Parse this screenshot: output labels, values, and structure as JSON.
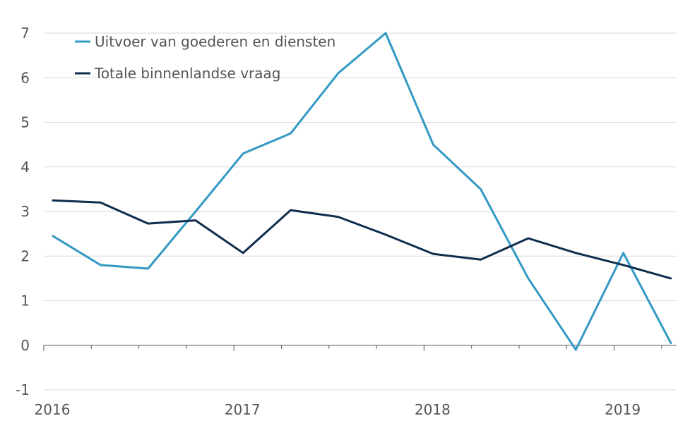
{
  "chart_data": {
    "type": "line",
    "title": "",
    "xlabel": "",
    "ylabel": "",
    "ylim": [
      -1,
      7
    ],
    "y_ticks": [
      -1,
      0,
      1,
      2,
      3,
      4,
      5,
      6,
      7
    ],
    "x_year_labels": [
      "2016",
      "2017",
      "2018",
      "2019"
    ],
    "quarters_per_year": 4,
    "grid": true,
    "legend_position": "top-left",
    "series": [
      {
        "name": "Uitvoer van goederen en diensten",
        "color": "#3399c4",
        "values": [
          2.45,
          1.8,
          1.72,
          3.0,
          4.3,
          4.75,
          6.1,
          7.0,
          4.5,
          3.5,
          1.5,
          -0.1,
          2.07,
          0.05
        ]
      },
      {
        "name": "Totale binnenlandse vraag",
        "color": "#0f2d4e",
        "values": [
          3.25,
          3.2,
          2.73,
          2.8,
          2.07,
          3.03,
          2.88,
          2.48,
          2.05,
          1.92,
          2.4,
          2.07,
          1.8,
          1.5
        ]
      }
    ]
  }
}
